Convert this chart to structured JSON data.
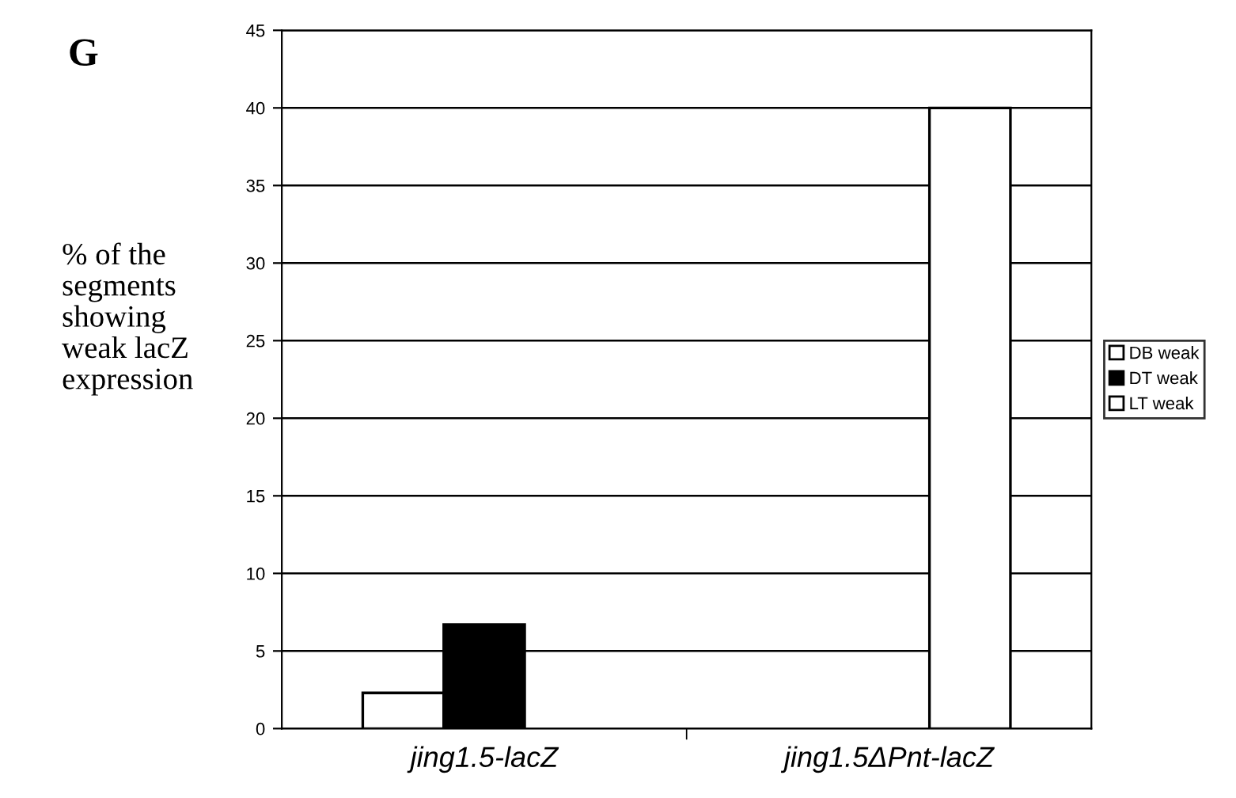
{
  "chart_data": {
    "type": "bar",
    "ylabel": "% of the\nsegments\nshowing\nweak lacZ\nexpression",
    "annotations": [
      "G"
    ],
    "categories": [
      "jing1.5-lacZ",
      "jing1.5ΔPnt-lacZ"
    ],
    "series": [
      {
        "name": "DB weak",
        "color": "#ffffff",
        "values": [
          2.3,
          null
        ]
      },
      {
        "name": "DT weak",
        "color": "#000000",
        "values": [
          6.7,
          null
        ]
      },
      {
        "name": "LT weak",
        "color": "#ffffff",
        "values": [
          null,
          40
        ]
      }
    ],
    "ylim": [
      0,
      45
    ],
    "yticks": [
      0,
      5,
      10,
      15,
      20,
      25,
      30,
      35,
      40,
      45
    ],
    "grid": "y",
    "legend": "right"
  }
}
